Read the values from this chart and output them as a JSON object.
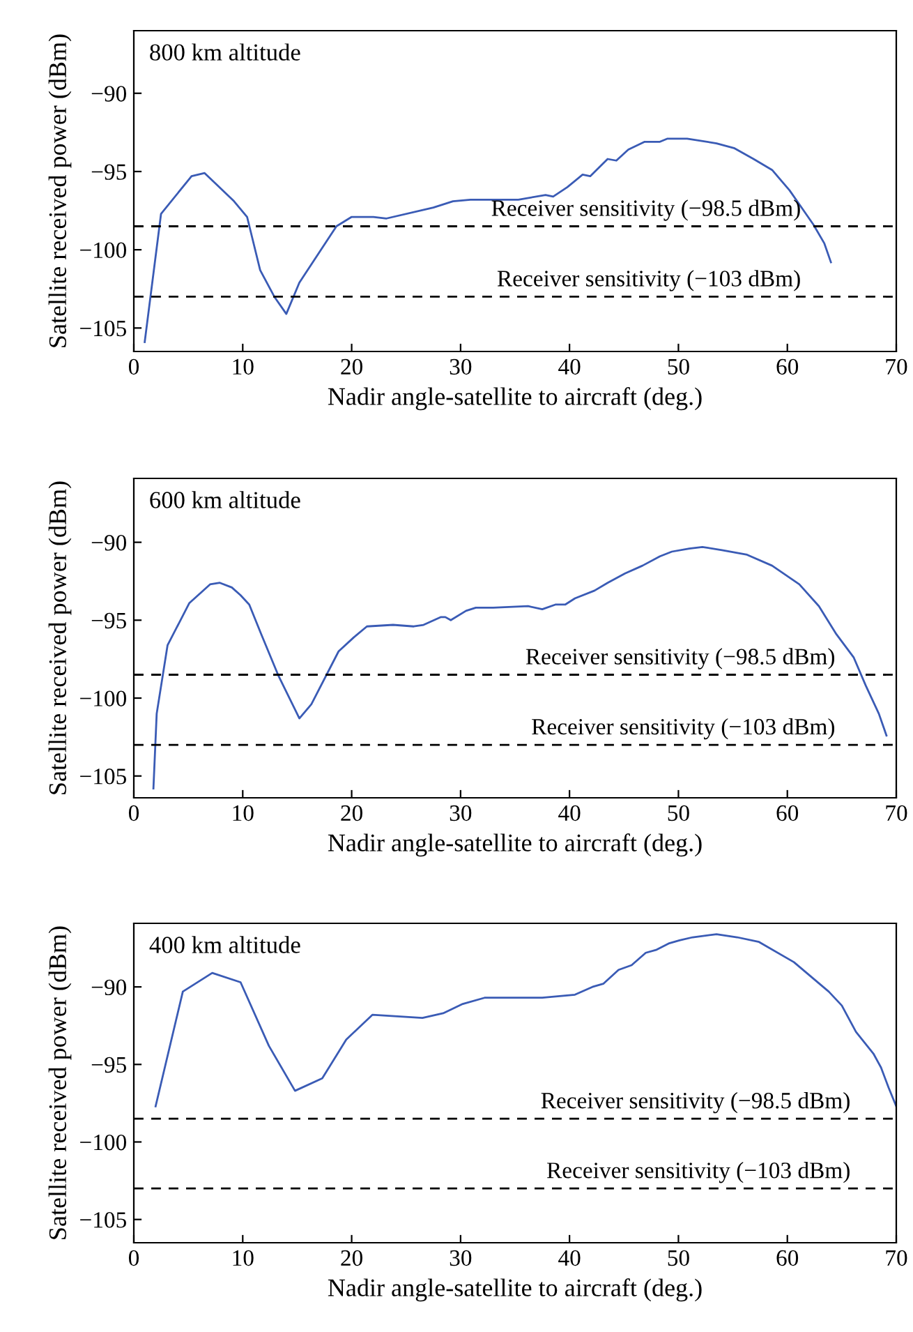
{
  "chart_data": [
    {
      "type": "line",
      "title": "800 km altitude",
      "xlabel": "Nadir angle-satellite to aircraft (deg.)",
      "ylabel": "Satellite received power (dBm)",
      "xlim": [
        0,
        70
      ],
      "ylim": [
        -106.5,
        -86.0
      ],
      "xticks": [
        0,
        10,
        20,
        30,
        40,
        50,
        60,
        70
      ],
      "yticks": [
        -105,
        -100,
        -95,
        -90
      ],
      "grid": false,
      "legend": false,
      "line_style": "solid",
      "series": [
        {
          "color": "#3a5bb5",
          "x": [
            1.0,
            2.5,
            5.3,
            6.5,
            9.2,
            10.4,
            11.6,
            12.9,
            14.0,
            15.2,
            18.6,
            20.0,
            22.0,
            23.2,
            27.5,
            29.3,
            30.9,
            35.3,
            37.8,
            38.5,
            39.8,
            41.2,
            41.9,
            43.5,
            44.3,
            45.4,
            46.9,
            48.3,
            49.0,
            50.8,
            53.5,
            55.1,
            56.9,
            58.6,
            60.2,
            61.3,
            62.4,
            63.4,
            64.0
          ],
          "values": [
            -105.9,
            -97.7,
            -95.3,
            -95.1,
            -96.9,
            -97.9,
            -101.3,
            -103.0,
            -104.1,
            -102.1,
            -98.5,
            -97.9,
            -97.9,
            -98.0,
            -97.3,
            -96.9,
            -96.8,
            -96.8,
            -96.5,
            -96.6,
            -96.0,
            -95.2,
            -95.3,
            -94.2,
            -94.3,
            -93.6,
            -93.1,
            -93.1,
            -92.9,
            -92.9,
            -93.2,
            -93.5,
            -94.2,
            -94.9,
            -96.2,
            -97.3,
            -98.4,
            -99.6,
            -100.8
          ]
        }
      ],
      "ref_lines": [
        {
          "axis": "y",
          "value": -98.5,
          "label": "Receiver sensitivity (−98.5 dBm)",
          "color": "#000000",
          "line_style": "dashed"
        },
        {
          "axis": "y",
          "value": -103,
          "label": "Receiver sensitivity (−103 dBm)",
          "color": "#000000",
          "line_style": "dashed"
        }
      ]
    },
    {
      "type": "line",
      "title": "600 km altitude",
      "xlabel": "Nadir angle-satellite to aircraft (deg.)",
      "ylabel": "Satellite received power (dBm)",
      "xlim": [
        0,
        70
      ],
      "ylim": [
        -106.4,
        -85.9
      ],
      "xticks": [
        0,
        10,
        20,
        30,
        40,
        50,
        60,
        70
      ],
      "yticks": [
        -105,
        -100,
        -95,
        -90
      ],
      "grid": false,
      "legend": false,
      "line_style": "solid",
      "series": [
        {
          "color": "#3a5bb5",
          "x": [
            1.8,
            2.1,
            3.1,
            5.1,
            7.0,
            7.9,
            9.0,
            9.8,
            10.6,
            11.7,
            13.3,
            15.2,
            16.3,
            18.8,
            20.2,
            21.4,
            23.8,
            25.7,
            26.6,
            28.2,
            28.6,
            29.1,
            30.5,
            31.4,
            33.0,
            36.2,
            37.5,
            38.7,
            39.6,
            40.5,
            42.3,
            43.5,
            45.1,
            46.7,
            48.3,
            49.4,
            51.0,
            52.2,
            54.0,
            56.3,
            58.6,
            61.1,
            62.9,
            64.5,
            66.1,
            67.2,
            68.4,
            69.1
          ],
          "values": [
            -105.8,
            -101.0,
            -96.6,
            -93.9,
            -92.7,
            -92.6,
            -92.9,
            -93.4,
            -94.0,
            -95.9,
            -98.6,
            -101.3,
            -100.4,
            -97.0,
            -96.1,
            -95.4,
            -95.3,
            -95.4,
            -95.3,
            -94.8,
            -94.8,
            -95.0,
            -94.4,
            -94.2,
            -94.2,
            -94.1,
            -94.3,
            -94.0,
            -94.0,
            -93.6,
            -93.1,
            -92.6,
            -92.0,
            -91.5,
            -90.9,
            -90.6,
            -90.4,
            -90.3,
            -90.5,
            -90.8,
            -91.5,
            -92.7,
            -94.1,
            -95.9,
            -97.4,
            -99.2,
            -101.0,
            -102.4
          ]
        }
      ],
      "ref_lines": [
        {
          "axis": "y",
          "value": -98.5,
          "label": "Receiver sensitivity (−98.5 dBm)",
          "color": "#000000",
          "line_style": "dashed"
        },
        {
          "axis": "y",
          "value": -103,
          "label": "Receiver sensitivity (−103 dBm)",
          "color": "#000000",
          "line_style": "dashed"
        }
      ]
    },
    {
      "type": "line",
      "title": "400 km altitude",
      "xlabel": "Nadir angle-satellite to aircraft (deg.)",
      "ylabel": "Satellite received power (dBm)",
      "xlim": [
        0,
        70
      ],
      "ylim": [
        -106.5,
        -85.9
      ],
      "xticks": [
        0,
        10,
        20,
        30,
        40,
        50,
        60,
        70
      ],
      "yticks": [
        -105,
        -100,
        -95,
        -90
      ],
      "grid": false,
      "legend": false,
      "line_style": "solid",
      "series": [
        {
          "color": "#3a5bb5",
          "x": [
            2.0,
            4.5,
            7.2,
            9.8,
            12.4,
            14.8,
            17.3,
            19.5,
            21.9,
            26.5,
            28.4,
            30.2,
            32.2,
            37.5,
            40.5,
            42.1,
            43.1,
            44.5,
            45.7,
            47.0,
            48.0,
            49.1,
            50.1,
            51.3,
            53.5,
            55.4,
            57.4,
            60.6,
            63.8,
            65.0,
            66.3,
            67.9,
            68.6,
            69.3,
            70.0
          ],
          "values": [
            -97.7,
            -90.3,
            -89.1,
            -89.7,
            -93.8,
            -96.7,
            -95.9,
            -93.4,
            -91.8,
            -92.0,
            -91.7,
            -91.1,
            -90.7,
            -90.7,
            -90.5,
            -90.0,
            -89.8,
            -88.9,
            -88.6,
            -87.8,
            -87.6,
            -87.2,
            -87.0,
            -86.8,
            -86.6,
            -86.8,
            -87.1,
            -88.4,
            -90.3,
            -91.2,
            -92.9,
            -94.3,
            -95.2,
            -96.5,
            -97.7
          ]
        }
      ],
      "ref_lines": [
        {
          "axis": "y",
          "value": -98.5,
          "label": "Receiver sensitivity (−98.5 dBm)",
          "color": "#000000",
          "line_style": "dashed"
        },
        {
          "axis": "y",
          "value": -103,
          "label": "Receiver sensitivity (−103 dBm)",
          "color": "#000000",
          "line_style": "dashed"
        }
      ]
    }
  ]
}
